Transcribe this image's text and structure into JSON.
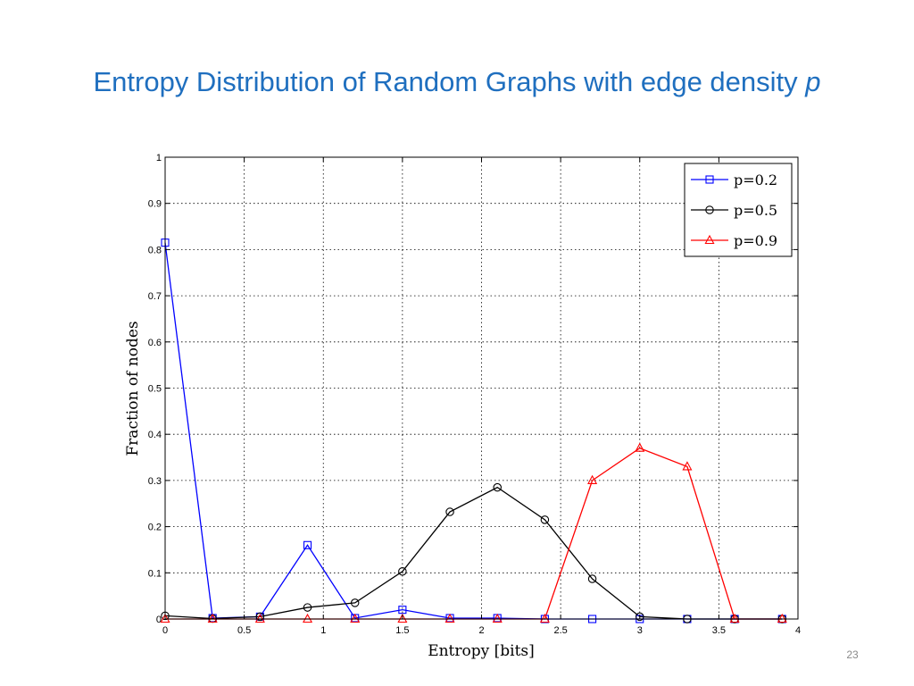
{
  "slide": {
    "title_main": "Entropy Distribution of Random Graphs with edge density ",
    "title_variable": "p",
    "page_number": "23"
  },
  "chart_data": {
    "type": "line",
    "title": "",
    "xlabel": "Entropy [bits]",
    "ylabel": "Fraction of nodes",
    "xlim": [
      0,
      4
    ],
    "ylim": [
      0,
      1
    ],
    "xticks": [
      0,
      0.5,
      1,
      1.5,
      2,
      2.5,
      3,
      3.5,
      4
    ],
    "xtick_labels": [
      "0",
      "0.5",
      "1",
      "1.5",
      "2",
      "2.5",
      "3",
      "3.5",
      "4"
    ],
    "yticks": [
      0,
      0.1,
      0.2,
      0.3,
      0.4,
      0.5,
      0.6,
      0.7,
      0.8,
      0.9,
      1
    ],
    "ytick_labels": [
      "0",
      "0.1",
      "0.2",
      "0.3",
      "0.4",
      "0.5",
      "0.6",
      "0.7",
      "0.8",
      "0.9",
      "1"
    ],
    "grid": true,
    "legend_position": "top-right",
    "series": [
      {
        "name": "p=0.2",
        "color": "#0000ff",
        "marker": "square",
        "x": [
          0,
          0.3,
          0.6,
          0.9,
          1.2,
          1.5,
          1.8,
          2.1,
          2.4,
          2.7,
          3.0,
          3.3,
          3.6,
          3.9
        ],
        "y": [
          0.815,
          0.002,
          0.005,
          0.16,
          0.002,
          0.02,
          0.002,
          0.002,
          0,
          0,
          0,
          0,
          0,
          0
        ]
      },
      {
        "name": "p=0.5",
        "color": "#000000",
        "marker": "circle",
        "x": [
          0,
          0.3,
          0.6,
          0.9,
          1.2,
          1.5,
          1.8,
          2.1,
          2.4,
          2.7,
          3.0,
          3.3,
          3.6,
          3.9
        ],
        "y": [
          0.007,
          0.001,
          0.005,
          0.025,
          0.035,
          0.103,
          0.232,
          0.285,
          0.215,
          0.087,
          0.005,
          0,
          0,
          0
        ]
      },
      {
        "name": "p=0.9",
        "color": "#ff0000",
        "marker": "triangle",
        "x": [
          0,
          0.3,
          0.6,
          0.9,
          1.2,
          1.5,
          1.8,
          2.1,
          2.4,
          2.7,
          3.0,
          3.3,
          3.6,
          3.9
        ],
        "y": [
          0,
          0,
          0,
          0,
          0,
          0,
          0,
          0,
          0,
          0.3,
          0.37,
          0.33,
          0,
          0
        ]
      }
    ]
  }
}
